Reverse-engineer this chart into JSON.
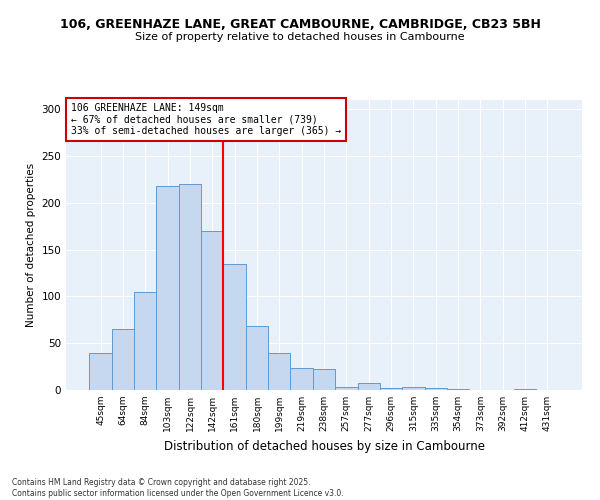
{
  "title1": "106, GREENHAZE LANE, GREAT CAMBOURNE, CAMBRIDGE, CB23 5BH",
  "title2": "Size of property relative to detached houses in Cambourne",
  "xlabel": "Distribution of detached houses by size in Cambourne",
  "ylabel": "Number of detached properties",
  "categories": [
    "45sqm",
    "64sqm",
    "84sqm",
    "103sqm",
    "122sqm",
    "142sqm",
    "161sqm",
    "180sqm",
    "199sqm",
    "219sqm",
    "238sqm",
    "257sqm",
    "277sqm",
    "296sqm",
    "315sqm",
    "335sqm",
    "354sqm",
    "373sqm",
    "392sqm",
    "412sqm",
    "431sqm"
  ],
  "values": [
    40,
    65,
    105,
    218,
    220,
    170,
    135,
    68,
    40,
    24,
    22,
    3,
    7,
    2,
    3,
    2,
    1,
    0,
    0,
    1,
    0
  ],
  "bar_color": "#c5d8f0",
  "bar_edge_color": "#5b9bd5",
  "red_line_x": 5.5,
  "annotation_title": "106 GREENHAZE LANE: 149sqm",
  "annotation_line1": "← 67% of detached houses are smaller (739)",
  "annotation_line2": "33% of semi-detached houses are larger (365) →",
  "annotation_box_color": "#ffffff",
  "annotation_box_edge": "#cc0000",
  "ylim": [
    0,
    310
  ],
  "yticks": [
    0,
    50,
    100,
    150,
    200,
    250,
    300
  ],
  "footer1": "Contains HM Land Registry data © Crown copyright and database right 2025.",
  "footer2": "Contains public sector information licensed under the Open Government Licence v3.0.",
  "bg_color": "#ffffff",
  "plot_bg_color": "#e8f0fa"
}
